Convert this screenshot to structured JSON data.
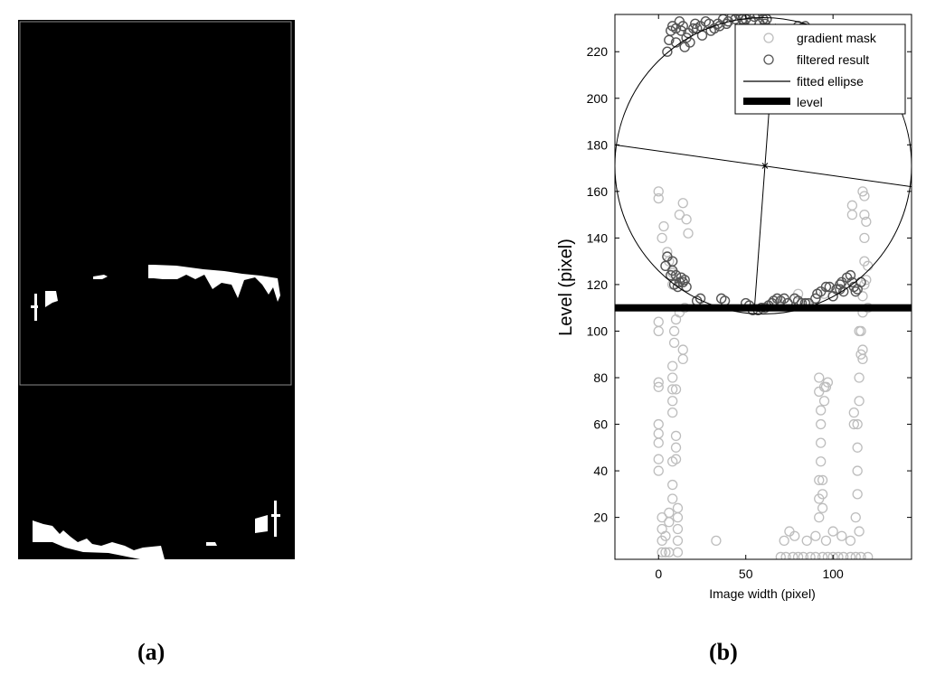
{
  "captions": {
    "a": "(a)",
    "b": "(b)"
  },
  "colors": {
    "mask": "#bdbdbd",
    "filtered": "#555555",
    "ellipse": "#000000",
    "level": "#000000"
  },
  "chart_data": {
    "type": "scatter",
    "xlabel": "Image width (pixel)",
    "ylabel": "Level (pixel)",
    "xlim": [
      -25,
      145
    ],
    "ylim": [
      236,
      2
    ],
    "y_reversed": true,
    "xticks": [
      0,
      50,
      100
    ],
    "yticks": [
      20,
      40,
      60,
      80,
      100,
      120,
      140,
      160,
      180,
      200,
      220
    ],
    "legend_position": "top-right",
    "legend": [
      {
        "label": "gradient mask",
        "marker": "circle-light"
      },
      {
        "label": "filtered result",
        "marker": "circle-dark"
      },
      {
        "label": "fitted ellipse",
        "marker": "thin-line"
      },
      {
        "label": "level",
        "marker": "thick-line"
      }
    ],
    "level": 110,
    "ellipse": {
      "center": [
        61,
        171
      ],
      "x_range": [
        -25,
        145
      ],
      "top": 110,
      "bottom": 232
    },
    "ellipse_axes": [
      {
        "from": [
          -25,
          180
        ],
        "to": [
          145,
          162
        ]
      },
      {
        "from": [
          55,
          110
        ],
        "to": [
          67,
          232
        ]
      }
    ],
    "series": [
      {
        "name": "gradient mask",
        "points": [
          [
            2,
            5
          ],
          [
            2,
            10
          ],
          [
            2,
            15
          ],
          [
            2,
            20
          ],
          [
            4,
            5
          ],
          [
            4,
            12
          ],
          [
            6,
            5
          ],
          [
            6,
            18
          ],
          [
            6,
            22
          ],
          [
            11,
            5
          ],
          [
            11,
            10
          ],
          [
            11,
            15
          ],
          [
            11,
            20
          ],
          [
            11,
            24
          ],
          [
            33,
            10
          ],
          [
            0,
            40
          ],
          [
            0,
            45
          ],
          [
            0,
            52
          ],
          [
            0,
            56
          ],
          [
            0,
            60
          ],
          [
            0,
            76
          ],
          [
            0,
            78
          ],
          [
            0,
            100
          ],
          [
            0,
            104
          ],
          [
            8,
            28
          ],
          [
            8,
            34
          ],
          [
            8,
            44
          ],
          [
            10,
            45
          ],
          [
            10,
            50
          ],
          [
            10,
            55
          ],
          [
            8,
            65
          ],
          [
            8,
            70
          ],
          [
            8,
            75
          ],
          [
            8,
            80
          ],
          [
            8,
            85
          ],
          [
            9,
            95
          ],
          [
            9,
            100
          ],
          [
            10,
            105
          ],
          [
            12,
            108
          ],
          [
            15,
            110
          ],
          [
            14,
            88
          ],
          [
            14,
            92
          ],
          [
            10,
            75
          ],
          [
            8,
            120
          ],
          [
            8,
            125
          ],
          [
            6,
            130
          ],
          [
            5,
            134
          ],
          [
            2,
            140
          ],
          [
            3,
            145
          ],
          [
            0,
            157
          ],
          [
            0,
            160
          ],
          [
            12,
            150
          ],
          [
            14,
            155
          ],
          [
            16,
            148
          ],
          [
            17,
            142
          ],
          [
            70,
            3
          ],
          [
            73,
            3
          ],
          [
            77,
            3
          ],
          [
            80,
            3
          ],
          [
            83,
            3
          ],
          [
            87,
            3
          ],
          [
            90,
            3
          ],
          [
            94,
            3
          ],
          [
            97,
            3
          ],
          [
            100,
            3
          ],
          [
            103,
            3
          ],
          [
            106,
            3
          ],
          [
            110,
            3
          ],
          [
            113,
            3
          ],
          [
            116,
            3
          ],
          [
            120,
            3
          ],
          [
            72,
            10
          ],
          [
            75,
            14
          ],
          [
            78,
            12
          ],
          [
            85,
            10
          ],
          [
            90,
            12
          ],
          [
            96,
            10
          ],
          [
            100,
            14
          ],
          [
            105,
            12
          ],
          [
            110,
            10
          ],
          [
            115,
            14
          ],
          [
            92,
            20
          ],
          [
            92,
            28
          ],
          [
            92,
            36
          ],
          [
            93,
            44
          ],
          [
            93,
            52
          ],
          [
            93,
            60
          ],
          [
            93,
            66
          ],
          [
            92,
            74
          ],
          [
            92,
            80
          ],
          [
            95,
            70
          ],
          [
            95,
            76
          ],
          [
            94,
            36
          ],
          [
            94,
            30
          ],
          [
            94,
            24
          ],
          [
            113,
            20
          ],
          [
            114,
            30
          ],
          [
            114,
            40
          ],
          [
            114,
            50
          ],
          [
            114,
            60
          ],
          [
            115,
            70
          ],
          [
            115,
            80
          ],
          [
            116,
            90
          ],
          [
            116,
            100
          ],
          [
            117,
            108
          ],
          [
            117,
            115
          ],
          [
            118,
            120
          ],
          [
            118,
            130
          ],
          [
            118,
            140
          ],
          [
            118,
            150
          ],
          [
            118,
            158
          ],
          [
            112,
            60
          ],
          [
            112,
            65
          ],
          [
            117,
            88
          ],
          [
            117,
            92
          ],
          [
            115,
            100
          ],
          [
            120,
            110
          ],
          [
            97,
            78
          ],
          [
            96,
            76
          ],
          [
            119,
            122
          ],
          [
            120,
            128
          ],
          [
            119,
            147
          ],
          [
            111,
            150
          ],
          [
            111,
            154
          ],
          [
            117,
            160
          ],
          [
            95,
            116
          ],
          [
            80,
            116
          ],
          [
            85,
            112
          ],
          [
            68,
            111
          ]
        ]
      },
      {
        "name": "filtered result",
        "points": [
          [
            4,
            128
          ],
          [
            5,
            132
          ],
          [
            7,
            124
          ],
          [
            8,
            126
          ],
          [
            8,
            130
          ],
          [
            9,
            120
          ],
          [
            10,
            124
          ],
          [
            11,
            119
          ],
          [
            12,
            121
          ],
          [
            13,
            123
          ],
          [
            14,
            121
          ],
          [
            15,
            122
          ],
          [
            16,
            119
          ],
          [
            22,
            113
          ],
          [
            24,
            114
          ],
          [
            36,
            114
          ],
          [
            38,
            113
          ],
          [
            50,
            112
          ],
          [
            52,
            111
          ],
          [
            54,
            109
          ],
          [
            57,
            109
          ],
          [
            59,
            110
          ],
          [
            61,
            110
          ],
          [
            63,
            111
          ],
          [
            65,
            112
          ],
          [
            66,
            113
          ],
          [
            68,
            114
          ],
          [
            70,
            113
          ],
          [
            72,
            114
          ],
          [
            74,
            112
          ],
          [
            78,
            114
          ],
          [
            80,
            113
          ],
          [
            82,
            112
          ],
          [
            84,
            112
          ],
          [
            86,
            112
          ],
          [
            90,
            114
          ],
          [
            91,
            116
          ],
          [
            93,
            117
          ],
          [
            96,
            119
          ],
          [
            98,
            119
          ],
          [
            100,
            115
          ],
          [
            102,
            118
          ],
          [
            104,
            118
          ],
          [
            104,
            120
          ],
          [
            105,
            121
          ],
          [
            106,
            117
          ],
          [
            108,
            123
          ],
          [
            110,
            124
          ],
          [
            111,
            121
          ],
          [
            112,
            119
          ],
          [
            113,
            117
          ],
          [
            114,
            118
          ],
          [
            116,
            121
          ],
          [
            5,
            220
          ],
          [
            6,
            225
          ],
          [
            7,
            229
          ],
          [
            8,
            231
          ],
          [
            10,
            224
          ],
          [
            10,
            230
          ],
          [
            12,
            233
          ],
          [
            13,
            229
          ],
          [
            14,
            231
          ],
          [
            15,
            222
          ],
          [
            16,
            226
          ],
          [
            17,
            228
          ],
          [
            18,
            224
          ],
          [
            20,
            230
          ],
          [
            21,
            232
          ],
          [
            22,
            230
          ],
          [
            24,
            231
          ],
          [
            25,
            227
          ],
          [
            27,
            233
          ],
          [
            29,
            232
          ],
          [
            30,
            229
          ],
          [
            32,
            230
          ],
          [
            34,
            232
          ],
          [
            35,
            231
          ],
          [
            37,
            234
          ],
          [
            39,
            232
          ],
          [
            40,
            233
          ],
          [
            42,
            235
          ],
          [
            44,
            234
          ],
          [
            46,
            236
          ],
          [
            48,
            234
          ],
          [
            49,
            232
          ],
          [
            50,
            234
          ],
          [
            52,
            236
          ],
          [
            53,
            233
          ],
          [
            55,
            235
          ],
          [
            57,
            236
          ],
          [
            58,
            232
          ],
          [
            60,
            234
          ],
          [
            61,
            232
          ],
          [
            62,
            234
          ],
          [
            80,
            231
          ],
          [
            82,
            230
          ],
          [
            84,
            231
          ],
          [
            100,
            225
          ],
          [
            102,
            223
          ],
          [
            103,
            227
          ],
          [
            104,
            221
          ],
          [
            105,
            225
          ],
          [
            106,
            219
          ],
          [
            107,
            223
          ],
          [
            108,
            226
          ],
          [
            109,
            220
          ],
          [
            110,
            222
          ],
          [
            111,
            224
          ],
          [
            112,
            214
          ],
          [
            112,
            218
          ],
          [
            113,
            216
          ]
        ]
      }
    ]
  }
}
